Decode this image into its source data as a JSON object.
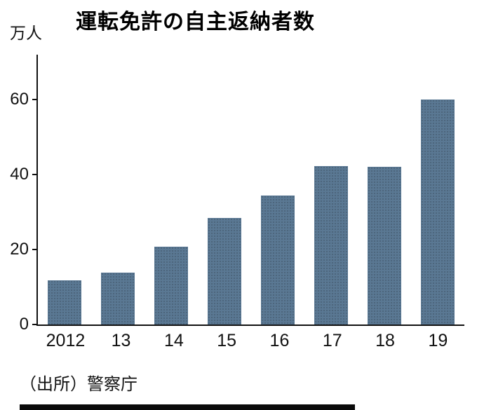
{
  "colors": {
    "bar": "#5a7893",
    "axis": "#111111"
  },
  "chart_data": {
    "type": "bar",
    "title": "運転免許の自主返納者数",
    "ylabel": "万人",
    "xlabel": "",
    "categories": [
      "2012",
      "13",
      "14",
      "15",
      "16",
      "17",
      "18",
      "19"
    ],
    "values": [
      11.8,
      13.8,
      20.8,
      28.5,
      34.5,
      42.3,
      42.1,
      60.1
    ],
    "ylim": [
      0,
      72
    ],
    "yticks": [
      0,
      20,
      40,
      60
    ],
    "grid": false,
    "legend": false,
    "source": "（出所）警察庁"
  }
}
